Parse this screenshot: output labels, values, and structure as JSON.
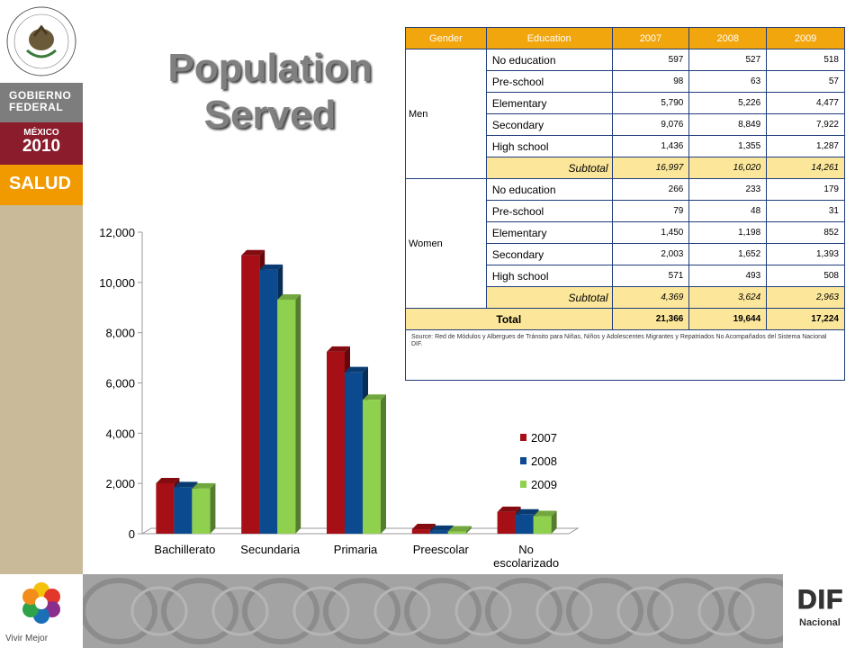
{
  "branding": {
    "gobierno_line1": "GOBIERNO",
    "gobierno_line2": "FEDERAL",
    "mexico_line1": "MÉXICO",
    "mexico_line2": "2010",
    "salud": "SALUD",
    "vivir_mejor": "Vivir Mejor",
    "dif_title": "DIF",
    "dif_sub": "Nacional",
    "seal_text": "ESTADOS UNIDOS MEXICANOS"
  },
  "page": {
    "title_line1": "Population",
    "title_line2": "Served"
  },
  "table": {
    "headers": [
      "Gender",
      "Education",
      "2007",
      "2008",
      "2009"
    ],
    "groups": [
      {
        "gender": "Men",
        "rows": [
          {
            "education": "No education",
            "v2007": "597",
            "v2008": "527",
            "v2009": "518"
          },
          {
            "education": "Pre-school",
            "v2007": "98",
            "v2008": "63",
            "v2009": "57"
          },
          {
            "education": "Elementary",
            "v2007": "5,790",
            "v2008": "5,226",
            "v2009": "4,477"
          },
          {
            "education": "Secondary",
            "v2007": "9,076",
            "v2008": "8,849",
            "v2009": "7,922"
          },
          {
            "education": "High school",
            "v2007": "1,436",
            "v2008": "1,355",
            "v2009": "1,287"
          }
        ],
        "subtotal": {
          "label": "Subtotal",
          "v2007": "16,997",
          "v2008": "16,020",
          "v2009": "14,261"
        }
      },
      {
        "gender": "Women",
        "rows": [
          {
            "education": "No education",
            "v2007": "266",
            "v2008": "233",
            "v2009": "179"
          },
          {
            "education": "Pre-school",
            "v2007": "79",
            "v2008": "48",
            "v2009": "31"
          },
          {
            "education": "Elementary",
            "v2007": "1,450",
            "v2008": "1,198",
            "v2009": "852"
          },
          {
            "education": "Secondary",
            "v2007": "2,003",
            "v2008": "1,652",
            "v2009": "1,393"
          },
          {
            "education": "High school",
            "v2007": "571",
            "v2008": "493",
            "v2009": "508"
          }
        ],
        "subtotal": {
          "label": "Subtotal",
          "v2007": "4,369",
          "v2008": "3,624",
          "v2009": "2,963"
        }
      }
    ],
    "total": {
      "label": "Total",
      "v2007": "21,366",
      "v2008": "19,644",
      "v2009": "17,224"
    },
    "source": "Source: Red de Módulos y Albergues de Tránsito para Niñas, Niños y Adolescentes Migrantes y Repatriados No Acompañados del Sistema Nacional DIF."
  },
  "chart_data": {
    "type": "bar",
    "categories": [
      "Bachillerato",
      "Secundaria",
      "Primaria",
      "Preescolar",
      "No escolarizado"
    ],
    "series": [
      {
        "name": "2007",
        "values": [
          2007,
          11079,
          7240,
          177,
          863
        ],
        "color": "#a50f15"
      },
      {
        "name": "2008",
        "values": [
          1848,
          10501,
          6424,
          111,
          760
        ],
        "color": "#0b4a8f"
      },
      {
        "name": "2009",
        "values": [
          1795,
          9315,
          5329,
          88,
          697
        ],
        "color": "#8fd14f"
      }
    ],
    "ylim": [
      0,
      12000
    ],
    "yticks": [
      "0",
      "2,000",
      "4,000",
      "6,000",
      "8,000",
      "10,000",
      "12,000"
    ],
    "legend": "right",
    "grid": false,
    "style": "3d"
  }
}
